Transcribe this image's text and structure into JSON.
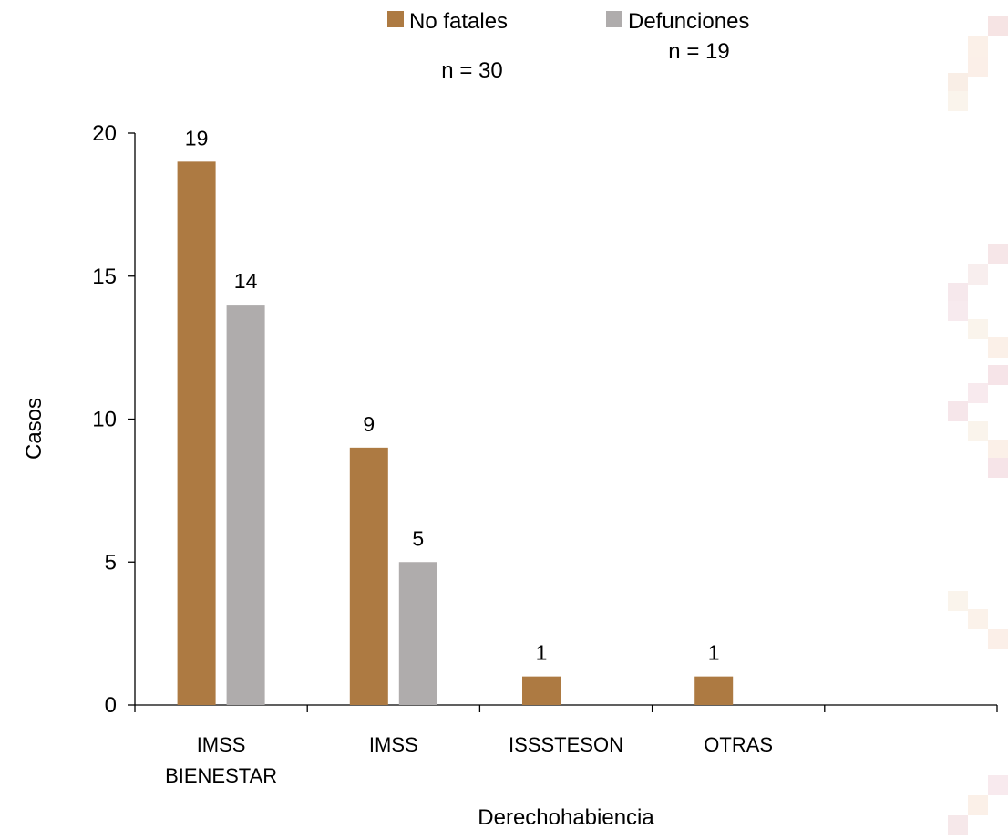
{
  "chart_data": {
    "type": "bar",
    "categories": [
      "IMSS BIENESTAR",
      "IMSS",
      "ISSSTESON",
      "OTRAS",
      ""
    ],
    "series": [
      {
        "name": "No fatales",
        "values": [
          19,
          9,
          1,
          1,
          null
        ],
        "color": "#AD7A42",
        "n_label": "n = 30"
      },
      {
        "name": "Defunciones",
        "values": [
          14,
          5,
          null,
          null,
          null
        ],
        "color": "#AFACAC",
        "n_label": "n = 19"
      }
    ],
    "data_labels": [
      [
        "19",
        "9",
        "1",
        "1",
        ""
      ],
      [
        "14",
        "5",
        "",
        "",
        ""
      ]
    ],
    "xlabel": "Derechohabiencia",
    "ylabel": "Casos",
    "ylim": [
      0,
      20
    ],
    "yticks": [
      0,
      5,
      10,
      15,
      20
    ],
    "grid": false,
    "legend": "top-center"
  }
}
